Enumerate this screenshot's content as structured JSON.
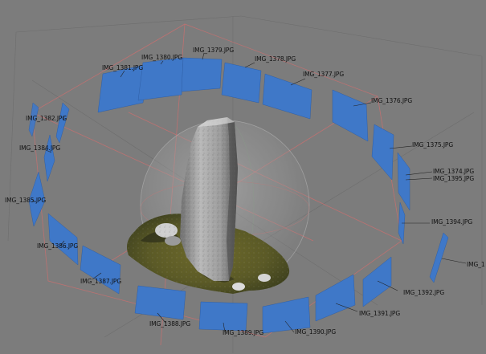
{
  "viewer": {
    "camera_labels": [
      "IMG_1380.JPG",
      "IMG_1379.JPG",
      "IMG_1378.JPG",
      "IMG_1381.JPG",
      "IMG_1377.JPG",
      "IMG_1376.JPG",
      "IMG_1382.JPG",
      "IMG_1384.JPG",
      "IMG_1375.JPG",
      "IMG_1374.JPG",
      "IMG_1395.JPG",
      "IMG_1385.JPG",
      "IMG_1394.JPG",
      "IMG_1386.JPG",
      "IMG_1",
      "IMG_1387.JPG",
      "IMG_1392.JPG",
      "IMG_1391.JPG",
      "IMG_1388.JPG",
      "IMG_1389.JPG",
      "IMG_1390.JPG"
    ],
    "colors": {
      "background": "#7c7c7c",
      "camera_frustum": "#3f78c8",
      "bounding_box": "#c87070",
      "sphere_guide": "#d8d8d8",
      "label_text": "#111111"
    }
  }
}
